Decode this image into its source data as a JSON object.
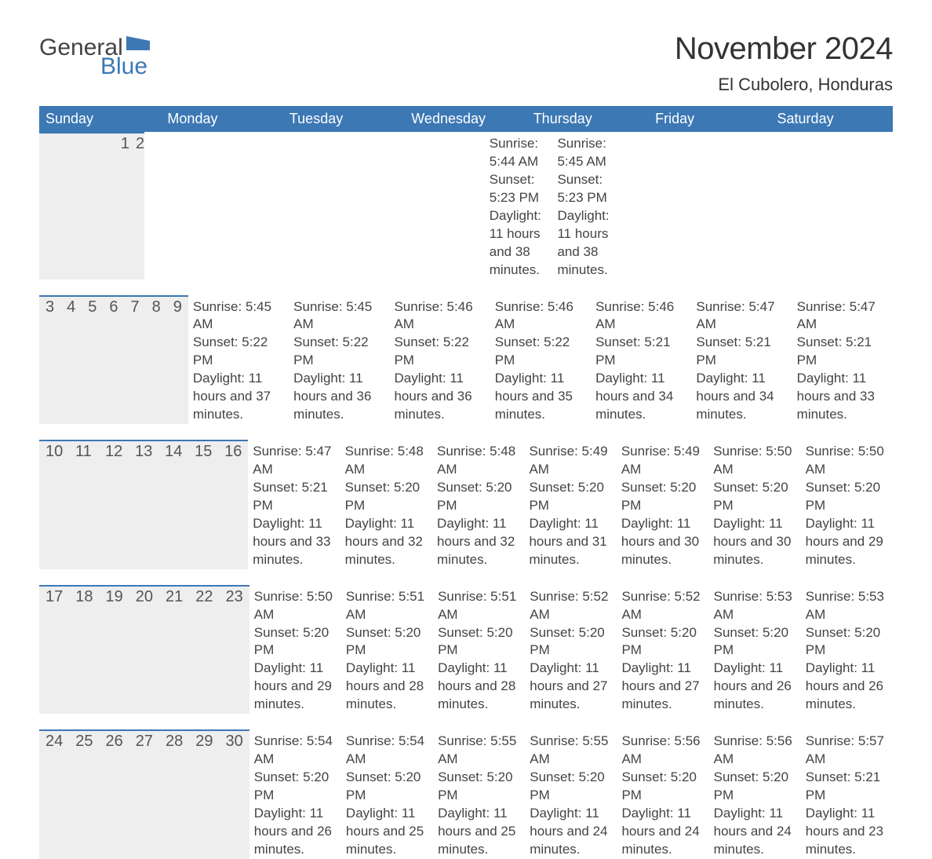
{
  "logo": {
    "general": "General",
    "blue": "Blue",
    "flag_color": "#3c78b4"
  },
  "title": "November 2024",
  "location": "El Cubolero, Honduras",
  "colors": {
    "header_bg": "#3c78b4",
    "header_text": "#ffffff",
    "day_bg": "#eeeeee",
    "text": "#444444",
    "border": "#3c78b4",
    "page_bg": "#ffffff"
  },
  "typography": {
    "title_fontsize": 40,
    "location_fontsize": 22,
    "header_fontsize": 18,
    "daynum_fontsize": 20,
    "body_fontsize": 17
  },
  "day_names": [
    "Sunday",
    "Monday",
    "Tuesday",
    "Wednesday",
    "Thursday",
    "Friday",
    "Saturday"
  ],
  "labels": {
    "sunrise": "Sunrise:",
    "sunset": "Sunset:",
    "daylight": "Daylight:"
  },
  "weeks": [
    [
      null,
      null,
      null,
      null,
      null,
      {
        "n": "1",
        "sr": "5:44 AM",
        "ss": "5:23 PM",
        "dl": "11 hours and 38 minutes."
      },
      {
        "n": "2",
        "sr": "5:45 AM",
        "ss": "5:23 PM",
        "dl": "11 hours and 38 minutes."
      }
    ],
    [
      {
        "n": "3",
        "sr": "5:45 AM",
        "ss": "5:22 PM",
        "dl": "11 hours and 37 minutes."
      },
      {
        "n": "4",
        "sr": "5:45 AM",
        "ss": "5:22 PM",
        "dl": "11 hours and 36 minutes."
      },
      {
        "n": "5",
        "sr": "5:46 AM",
        "ss": "5:22 PM",
        "dl": "11 hours and 36 minutes."
      },
      {
        "n": "6",
        "sr": "5:46 AM",
        "ss": "5:22 PM",
        "dl": "11 hours and 35 minutes."
      },
      {
        "n": "7",
        "sr": "5:46 AM",
        "ss": "5:21 PM",
        "dl": "11 hours and 34 minutes."
      },
      {
        "n": "8",
        "sr": "5:47 AM",
        "ss": "5:21 PM",
        "dl": "11 hours and 34 minutes."
      },
      {
        "n": "9",
        "sr": "5:47 AM",
        "ss": "5:21 PM",
        "dl": "11 hours and 33 minutes."
      }
    ],
    [
      {
        "n": "10",
        "sr": "5:47 AM",
        "ss": "5:21 PM",
        "dl": "11 hours and 33 minutes."
      },
      {
        "n": "11",
        "sr": "5:48 AM",
        "ss": "5:20 PM",
        "dl": "11 hours and 32 minutes."
      },
      {
        "n": "12",
        "sr": "5:48 AM",
        "ss": "5:20 PM",
        "dl": "11 hours and 32 minutes."
      },
      {
        "n": "13",
        "sr": "5:49 AM",
        "ss": "5:20 PM",
        "dl": "11 hours and 31 minutes."
      },
      {
        "n": "14",
        "sr": "5:49 AM",
        "ss": "5:20 PM",
        "dl": "11 hours and 30 minutes."
      },
      {
        "n": "15",
        "sr": "5:50 AM",
        "ss": "5:20 PM",
        "dl": "11 hours and 30 minutes."
      },
      {
        "n": "16",
        "sr": "5:50 AM",
        "ss": "5:20 PM",
        "dl": "11 hours and 29 minutes."
      }
    ],
    [
      {
        "n": "17",
        "sr": "5:50 AM",
        "ss": "5:20 PM",
        "dl": "11 hours and 29 minutes."
      },
      {
        "n": "18",
        "sr": "5:51 AM",
        "ss": "5:20 PM",
        "dl": "11 hours and 28 minutes."
      },
      {
        "n": "19",
        "sr": "5:51 AM",
        "ss": "5:20 PM",
        "dl": "11 hours and 28 minutes."
      },
      {
        "n": "20",
        "sr": "5:52 AM",
        "ss": "5:20 PM",
        "dl": "11 hours and 27 minutes."
      },
      {
        "n": "21",
        "sr": "5:52 AM",
        "ss": "5:20 PM",
        "dl": "11 hours and 27 minutes."
      },
      {
        "n": "22",
        "sr": "5:53 AM",
        "ss": "5:20 PM",
        "dl": "11 hours and 26 minutes."
      },
      {
        "n": "23",
        "sr": "5:53 AM",
        "ss": "5:20 PM",
        "dl": "11 hours and 26 minutes."
      }
    ],
    [
      {
        "n": "24",
        "sr": "5:54 AM",
        "ss": "5:20 PM",
        "dl": "11 hours and 26 minutes."
      },
      {
        "n": "25",
        "sr": "5:54 AM",
        "ss": "5:20 PM",
        "dl": "11 hours and 25 minutes."
      },
      {
        "n": "26",
        "sr": "5:55 AM",
        "ss": "5:20 PM",
        "dl": "11 hours and 25 minutes."
      },
      {
        "n": "27",
        "sr": "5:55 AM",
        "ss": "5:20 PM",
        "dl": "11 hours and 24 minutes."
      },
      {
        "n": "28",
        "sr": "5:56 AM",
        "ss": "5:20 PM",
        "dl": "11 hours and 24 minutes."
      },
      {
        "n": "29",
        "sr": "5:56 AM",
        "ss": "5:20 PM",
        "dl": "11 hours and 24 minutes."
      },
      {
        "n": "30",
        "sr": "5:57 AM",
        "ss": "5:21 PM",
        "dl": "11 hours and 23 minutes."
      }
    ]
  ]
}
